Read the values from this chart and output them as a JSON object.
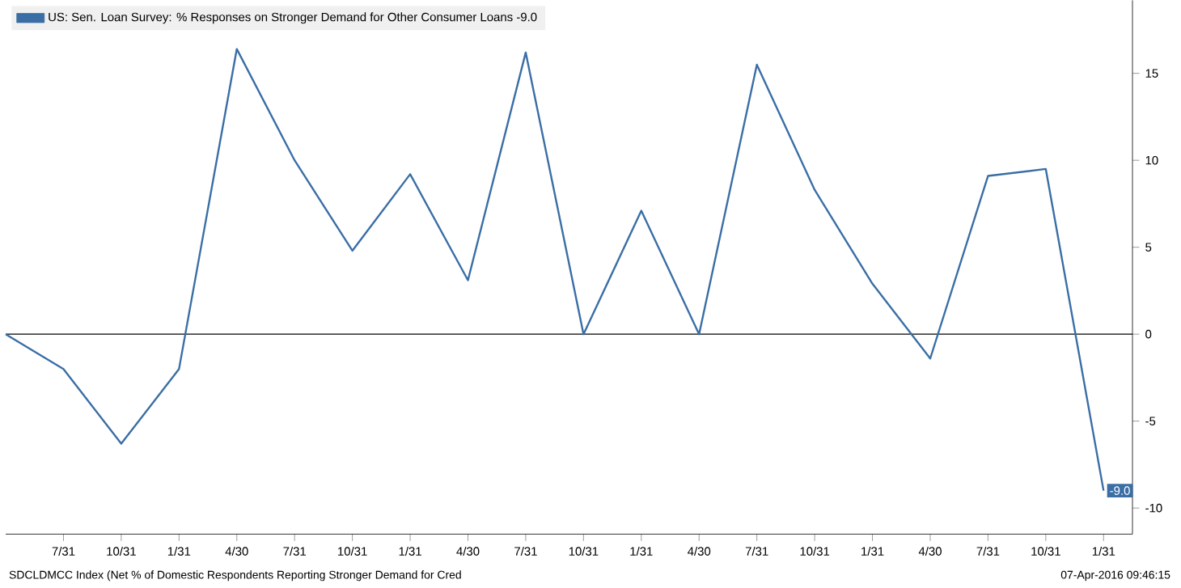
{
  "chart_data": {
    "type": "line",
    "categories": [
      null,
      "7/31",
      "10/31",
      "1/31",
      "4/30",
      "7/31",
      "10/31",
      "1/31",
      "4/30",
      "7/31",
      "10/31",
      "1/31",
      "4/30",
      "7/31",
      "10/31",
      "1/31",
      "4/30",
      "7/31",
      "10/31",
      "1/31"
    ],
    "series": [
      {
        "name": "US: Sen. Loan Survey: % Responses on Stronger Demand for Other Consumer Loans -9.0",
        "color": "#3a6ea5",
        "values": [
          0,
          -2,
          -6.3,
          -2,
          16.4,
          10,
          4.8,
          9.2,
          3.1,
          16.2,
          0,
          7.1,
          0,
          15.5,
          8.3,
          2.9,
          -1.4,
          9.1,
          9.5,
          -9.0
        ],
        "value_labels": [
          null,
          null,
          null,
          null,
          null,
          null,
          null,
          null,
          null,
          null,
          null,
          null,
          null,
          null,
          null,
          null,
          null,
          null,
          null,
          "-9.0"
        ]
      }
    ],
    "ylim": [
      -11.5,
      19.2
    ],
    "yticks": [
      -10,
      -5,
      0,
      5,
      10,
      15
    ],
    "ref_lines": [
      {
        "axis": "y",
        "value": 0,
        "color": "#000000"
      }
    ],
    "legend": "top left",
    "grid": false,
    "marker": "none",
    "line_style": "solid",
    "annotations": [
      "SDCLDMCC Index (Net % of Domestic Respondents Reporting Stronger Demand for Cred",
      "07-Apr-2016 09:46:15"
    ]
  }
}
